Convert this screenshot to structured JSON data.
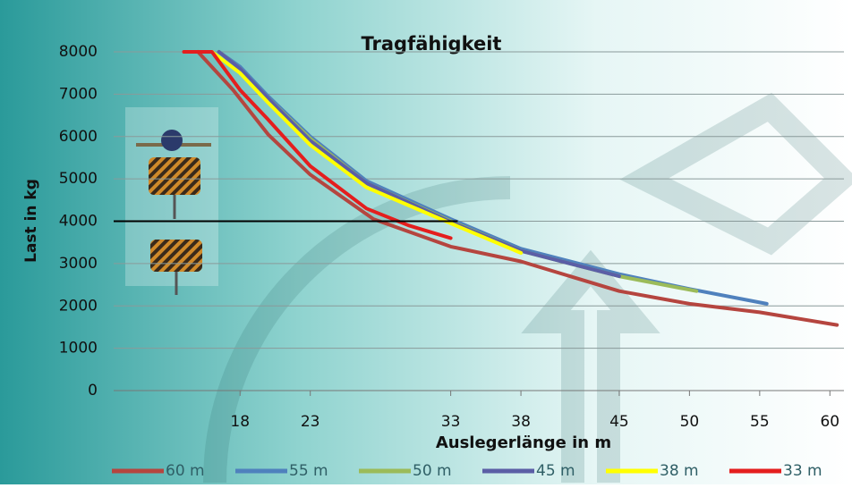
{
  "chart_data": {
    "type": "line",
    "title": "Tragfähigkeit",
    "xlabel": "Auslegerlänge in m",
    "ylabel": "Last in kg",
    "xlim": [
      9,
      61
    ],
    "xticks": [
      18,
      23,
      33,
      38,
      45,
      50,
      55,
      60
    ],
    "ylim": [
      0,
      8000
    ],
    "yticks": [
      0,
      1000,
      2000,
      3000,
      4000,
      5000,
      6000,
      7000,
      8000
    ],
    "grid": true,
    "legend": "bottom",
    "reference_line": {
      "value": 4000,
      "x": [
        9,
        33.5
      ],
      "color": "#000000"
    },
    "series": [
      {
        "name": "60 m",
        "color": "#b5453f",
        "x": [
          15,
          17.5,
          20,
          23,
          27.5,
          33,
          38,
          45,
          50,
          55,
          60.5
        ],
        "values": [
          8000,
          7100,
          6050,
          5100,
          4050,
          3400,
          3050,
          2350,
          2050,
          1850,
          1550
        ]
      },
      {
        "name": "55 m",
        "color": "#4f81bd",
        "x": [
          16.5,
          18,
          20,
          23,
          27,
          33,
          38,
          45,
          50,
          55.5
        ],
        "values": [
          8000,
          7650,
          6950,
          6000,
          4950,
          4050,
          3350,
          2750,
          2400,
          2050
        ]
      },
      {
        "name": "50 m",
        "color": "#9bbb59",
        "x": [
          16.5,
          18,
          20,
          23,
          27,
          33,
          38,
          45,
          50.5
        ],
        "values": [
          8000,
          7600,
          6900,
          5950,
          4900,
          4000,
          3300,
          2700,
          2350
        ]
      },
      {
        "name": "45 m",
        "color": "#5b5ea6",
        "x": [
          16.5,
          18,
          20,
          23,
          27,
          33,
          38,
          45
        ],
        "values": [
          8000,
          7600,
          6900,
          5900,
          4900,
          3980,
          3300,
          2700
        ]
      },
      {
        "name": "38 m",
        "color": "#ffff00",
        "x": [
          16,
          18,
          20,
          23,
          27,
          33,
          38
        ],
        "values": [
          8000,
          7500,
          6800,
          5800,
          4800,
          3950,
          3250
        ]
      },
      {
        "name": "33 m",
        "color": "#e41e1e",
        "x": [
          14,
          16,
          18,
          20,
          23,
          27,
          30,
          33
        ],
        "values": [
          8000,
          8000,
          7100,
          6400,
          5300,
          4300,
          3900,
          3600
        ]
      }
    ]
  }
}
